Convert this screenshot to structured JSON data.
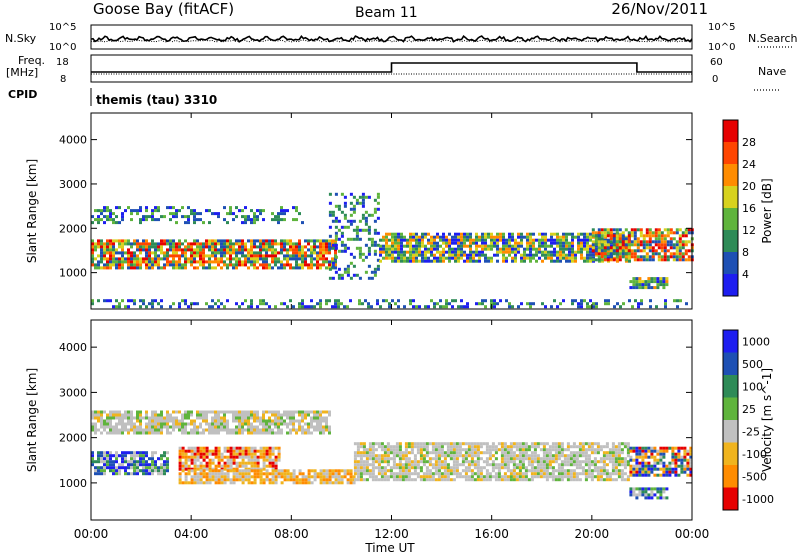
{
  "header": {
    "station": "Goose Bay (fitACF)",
    "beam": "Beam 11",
    "date": "26/Nov/2011"
  },
  "noise_panel": {
    "left_label": "N.Sky",
    "right_label": "N.Search",
    "left_ticks": [
      "10^5",
      "10^0"
    ],
    "right_ticks": [
      "10^5",
      "10^0"
    ]
  },
  "freq_panel": {
    "left_label_1": "Freq.",
    "left_label_2": "[MHz]",
    "right_label": "Nave",
    "left_ticks": [
      "18",
      "8"
    ],
    "right_ticks": [
      "60",
      "0"
    ],
    "step_start_hour": 12.0,
    "step_end_hour": 21.8
  },
  "cpid": {
    "label": "CPID",
    "text": "themis (tau) 3310"
  },
  "chart_data": [
    {
      "type": "heatmap",
      "panel": "power",
      "ylabel": "Slant Range [km]",
      "yticks": [
        "1000",
        "2000",
        "3000",
        "4000"
      ],
      "ylim": [
        180,
        4600
      ],
      "xlim": [
        0,
        24
      ],
      "colorbar_label": "Power [dB]",
      "colorbar_ticks": [
        "4",
        "8",
        "12",
        "16",
        "20",
        "24",
        "28"
      ],
      "colors": [
        "#1e1ef0",
        "#1e50b4",
        "#2e8b57",
        "#5fb43c",
        "#d7d21e",
        "#ff8c00",
        "#ff4500",
        "#e60000"
      ],
      "echo_bands": [
        {
          "x": [
            0.0,
            9.8
          ],
          "range": [
            1100,
            1750
          ],
          "level": "high"
        },
        {
          "x": [
            0.0,
            8.5
          ],
          "range": [
            2150,
            2500
          ],
          "level": "low"
        },
        {
          "x": [
            9.5,
            11.5
          ],
          "range": [
            900,
            2800
          ],
          "level": "low"
        },
        {
          "x": [
            11.5,
            21.5
          ],
          "range": [
            1250,
            1900
          ],
          "level": "medium"
        },
        {
          "x": [
            20.0,
            24.0
          ],
          "range": [
            1300,
            2000
          ],
          "level": "high"
        },
        {
          "x": [
            21.5,
            23.0
          ],
          "range": [
            650,
            900
          ],
          "level": "medium"
        },
        {
          "x": [
            0.0,
            24.0
          ],
          "range": [
            200,
            400
          ],
          "level": "low"
        }
      ]
    },
    {
      "type": "heatmap",
      "panel": "velocity",
      "ylabel": "Slant Range [km]",
      "yticks": [
        "1000",
        "2000",
        "3000",
        "4000"
      ],
      "ylim": [
        180,
        4600
      ],
      "xlim": [
        0,
        24
      ],
      "colorbar_label": "Velocity [m s^-1]",
      "colorbar_ticks": [
        "1000",
        "500",
        "100",
        "25",
        "-25",
        "-100",
        "-500",
        "-1000"
      ],
      "colors": [
        "#1e1ef0",
        "#1e50b4",
        "#2e8b57",
        "#5fb43c",
        "#c0c0c0",
        "#f0b41e",
        "#ff8c00",
        "#e60000"
      ],
      "xticks": [
        "00:00",
        "04:00",
        "08:00",
        "12:00",
        "16:00",
        "20:00",
        "00:00"
      ],
      "xlabel": "Time UT",
      "echo_bands": [
        {
          "x": [
            0.0,
            3.0
          ],
          "range": [
            1200,
            1700
          ],
          "level": "positive"
        },
        {
          "x": [
            3.5,
            7.5
          ],
          "range": [
            1300,
            1800
          ],
          "level": "negative"
        },
        {
          "x": [
            3.5,
            10.5
          ],
          "range": [
            1000,
            1300
          ],
          "level": "weak-negative"
        },
        {
          "x": [
            0.0,
            9.5
          ],
          "range": [
            2100,
            2600
          ],
          "level": "ground"
        },
        {
          "x": [
            10.5,
            21.5
          ],
          "range": [
            1100,
            1900
          ],
          "level": "ground"
        },
        {
          "x": [
            21.5,
            24.0
          ],
          "range": [
            1200,
            1800
          ],
          "level": "mixed"
        },
        {
          "x": [
            21.5,
            23.0
          ],
          "range": [
            700,
            900
          ],
          "level": "positive"
        }
      ]
    }
  ]
}
